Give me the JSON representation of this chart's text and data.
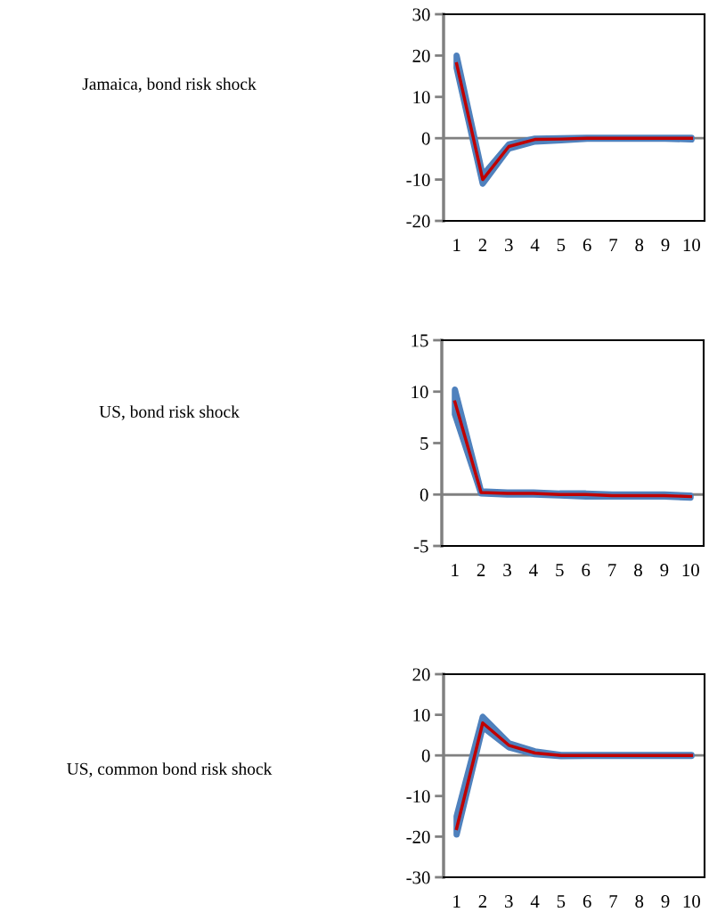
{
  "chart_data": [
    {
      "type": "line",
      "ylabel": "Jamaica, bond risk shock",
      "categories": [
        "1",
        "2",
        "3",
        "4",
        "5",
        "6",
        "7",
        "8",
        "9",
        "10"
      ],
      "ylim": [
        -20,
        30
      ],
      "yticks": [
        -20,
        -10,
        0,
        10,
        20,
        30
      ],
      "ref_lines": [
        {
          "axis": "y",
          "value": 0,
          "color": "#808080"
        }
      ],
      "series": [
        {
          "color": "#c00000",
          "values": [
            18,
            -10,
            -2,
            -0.3,
            -0.2,
            0,
            0,
            0,
            0,
            0
          ],
          "lower": [
            17,
            -11,
            -2.5,
            -0.8,
            -0.5,
            -0.1,
            -0.1,
            -0.1,
            -0.1,
            -0.3
          ],
          "upper": [
            20,
            -9,
            -1.5,
            -0.1,
            0,
            0.1,
            0.1,
            0.1,
            0.1,
            0.1
          ]
        }
      ]
    },
    {
      "type": "line",
      "ylabel": "US, bond risk shock",
      "categories": [
        "1",
        "2",
        "3",
        "4",
        "5",
        "6",
        "7",
        "8",
        "9",
        "10"
      ],
      "ylim": [
        -5,
        15
      ],
      "yticks": [
        -5,
        0,
        5,
        10,
        15
      ],
      "ref_lines": [
        {
          "axis": "y",
          "value": 0,
          "color": "#808080"
        }
      ],
      "series": [
        {
          "color": "#c00000",
          "values": [
            9,
            0.2,
            0.1,
            0.1,
            0,
            0,
            -0.1,
            -0.1,
            -0.1,
            -0.2
          ],
          "lower": [
            7.8,
            0.1,
            0,
            0,
            -0.1,
            -0.2,
            -0.2,
            -0.2,
            -0.2,
            -0.3
          ],
          "upper": [
            10.2,
            0.3,
            0.2,
            0.2,
            0.1,
            0.1,
            0,
            0,
            0,
            -0.1
          ]
        }
      ]
    },
    {
      "type": "line",
      "ylabel": "US, common bond risk shock",
      "categories": [
        "1",
        "2",
        "3",
        "4",
        "5",
        "6",
        "7",
        "8",
        "9",
        "10"
      ],
      "ylim": [
        -30,
        20
      ],
      "yticks": [
        -30,
        -20,
        -10,
        0,
        10,
        20
      ],
      "ref_lines": [
        {
          "axis": "y",
          "value": 0,
          "color": "#808080"
        }
      ],
      "series": [
        {
          "color": "#c00000",
          "values": [
            -18,
            8,
            2.5,
            0.6,
            0,
            0,
            0,
            0,
            0,
            0
          ],
          "lower": [
            -19.5,
            7,
            2,
            0.3,
            -0.2,
            -0.1,
            -0.1,
            -0.1,
            -0.1,
            -0.1
          ],
          "upper": [
            -15,
            9.5,
            3,
            1,
            0.1,
            0.1,
            0.1,
            0.1,
            0.1,
            0.1
          ]
        }
      ]
    }
  ]
}
